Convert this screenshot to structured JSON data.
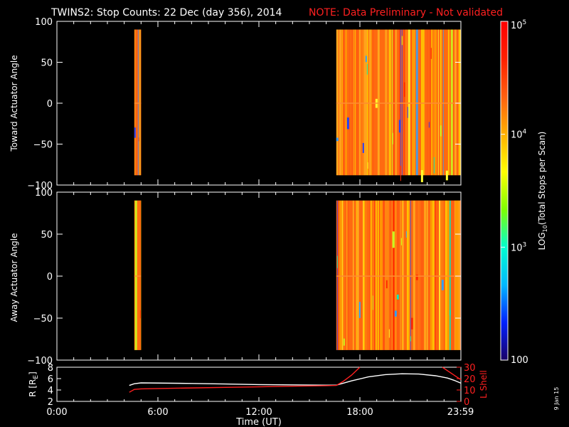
{
  "title": "TWINS2: Stop Counts: 22 Dec (day 356), 2014",
  "note": "NOTE: Data Preliminary - Not validated",
  "date_stamp": "9 Jan 15",
  "chart_data": [
    {
      "type": "heatmap",
      "ylabel": "Toward Actuator Angle",
      "ylim": [
        -100,
        100
      ],
      "yticks": [
        "100",
        "50",
        "0",
        "−50",
        "−100"
      ],
      "xlim": [
        0,
        24
      ],
      "data_blocks": [
        {
          "x_start": 4.6,
          "x_end": 5.0,
          "y_range": [
            -88,
            90
          ]
        },
        {
          "x_start": 16.6,
          "x_end": 24.0,
          "y_range": [
            -88,
            90
          ]
        }
      ],
      "dominant_color": "#ff6a10"
    },
    {
      "type": "heatmap",
      "ylabel": "Away Actuator Angle",
      "ylim": [
        -100,
        100
      ],
      "yticks": [
        "100",
        "50",
        "0",
        "−50",
        "−100"
      ],
      "xlim": [
        0,
        24
      ],
      "data_blocks": [
        {
          "x_start": 4.6,
          "x_end": 5.0,
          "y_range": [
            -88,
            90
          ]
        },
        {
          "x_start": 16.6,
          "x_end": 24.0,
          "y_range": [
            -88,
            90
          ]
        }
      ],
      "dominant_color": "#ff6a10"
    },
    {
      "type": "line",
      "ylabel_left": "R [R",
      "ylabel_left_sub": "E",
      "ylabel_left_end": "]",
      "ylabel_right": "L Shell",
      "ylim_left": [
        2,
        8
      ],
      "yticks_left": [
        "8",
        "6",
        "4",
        "2"
      ],
      "ylim_right": [
        0,
        30
      ],
      "yticks_right": [
        "30",
        "20",
        "10",
        "0"
      ],
      "xlabel": "Time (UT)",
      "xticks": [
        {
          "t": 0,
          "label": "0:00"
        },
        {
          "t": 6,
          "label": "6:00"
        },
        {
          "t": 12,
          "label": "12:00"
        },
        {
          "t": 18,
          "label": "18:00"
        },
        {
          "t": 23.98,
          "label": "23:59"
        }
      ],
      "xlim": [
        0,
        24
      ],
      "series": [
        {
          "axis": "left",
          "color": "#ffffff",
          "x": [
            4.3,
            4.6,
            5.0,
            6.0,
            8.0,
            10.0,
            12.0,
            14.0,
            16.0,
            16.6,
            17.5,
            18.5,
            19.5,
            20.5,
            21.5,
            22.5,
            23.2,
            23.6,
            24.0
          ],
          "y": [
            4.8,
            5.1,
            5.25,
            5.22,
            5.15,
            5.05,
            4.95,
            4.9,
            4.85,
            4.85,
            5.6,
            6.3,
            6.7,
            6.85,
            6.8,
            6.5,
            6.1,
            5.7,
            5.2
          ]
        },
        {
          "axis": "right",
          "color": "#ff2020",
          "x": [
            4.3,
            4.6,
            5.0,
            6.0,
            8.0,
            10.0,
            12.0,
            14.0,
            16.0,
            16.6,
            17.0,
            17.5,
            18.0
          ],
          "y": [
            8.0,
            10.5,
            11.0,
            11.3,
            11.8,
            12.3,
            12.8,
            13.3,
            13.8,
            14.0,
            17.5,
            23.0,
            30.0
          ]
        },
        {
          "axis": "right",
          "color": "#ff2020",
          "x": [
            22.9,
            23.3,
            23.7,
            24.0
          ],
          "y": [
            30.0,
            26.0,
            22.0,
            19.0
          ]
        }
      ]
    }
  ],
  "colorbar": {
    "label_pre": "LOG",
    "label_sub": "10",
    "label_post": "(Total Stops per Scan)",
    "ticks": [
      {
        "value": 100,
        "base": "100",
        "exp": ""
      },
      {
        "value": 1000,
        "base": "10",
        "exp": "3"
      },
      {
        "value": 10000,
        "base": "10",
        "exp": "4"
      },
      {
        "value": 100000,
        "base": "10",
        "exp": "5"
      }
    ],
    "range_log": [
      2,
      5
    ],
    "colors": [
      "#1a0066",
      "#0020ff",
      "#00b8ff",
      "#00ffd0",
      "#7fff00",
      "#ffff00",
      "#ffb000",
      "#ff6010",
      "#ff2000",
      "#ff0000"
    ]
  }
}
